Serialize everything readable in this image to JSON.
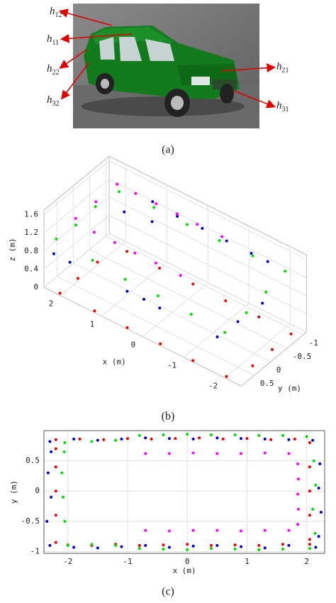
{
  "figure_a": {
    "labels": [
      {
        "base": "h",
        "sub": "12"
      },
      {
        "base": "h",
        "sub": "11"
      },
      {
        "base": "h",
        "sub": "22"
      },
      {
        "base": "h",
        "sub": "32"
      },
      {
        "base": "h",
        "sub": "21"
      },
      {
        "base": "h",
        "sub": "31"
      }
    ]
  },
  "captions": [
    "(a)",
    "(b)",
    "(c)"
  ],
  "chart_data": [
    {
      "type": "scatter3d",
      "xlabel": "x (m)",
      "ylabel": "y (m)",
      "zlabel": "z (m)",
      "xlim": [
        -2.4,
        2.4
      ],
      "ylim": [
        -1.1,
        0.9
      ],
      "zlim": [
        0,
        1.7
      ],
      "xticks": [
        2,
        1,
        0,
        -1,
        -2
      ],
      "yticks": [
        -1,
        -0.5,
        0,
        0.5
      ],
      "zticks": [
        0,
        0.4,
        0.8,
        1.2,
        1.6
      ],
      "grid": true,
      "series": [
        {
          "color": "#ee0000",
          "x": [
            2.05,
            1.2,
            0.4,
            -0.4,
            -1.2,
            -2.0,
            -2.2,
            -2.2,
            -2.2,
            -1.4,
            -0.6,
            0.2,
            1.0,
            1.8,
            2.05,
            2.05
          ],
          "y": [
            0.85,
            0.86,
            0.87,
            0.86,
            0.87,
            0.85,
            0.3,
            -0.3,
            -0.88,
            -0.9,
            -0.89,
            -0.9,
            -0.88,
            -0.89,
            -0.3,
            0.3
          ],
          "z": [
            0,
            0,
            0,
            0,
            0,
            0,
            0,
            0,
            0,
            0,
            0,
            0,
            0,
            0,
            0,
            0
          ]
        },
        {
          "color": "#00dd00",
          "x": [
            2.1,
            1.2,
            0.4,
            -0.4,
            -1.2,
            -2.0,
            -2.05,
            -2.05,
            -2.0,
            -1.2,
            -0.4,
            0.4,
            1.2,
            2.0,
            2.1,
            2.1
          ],
          "y": [
            0.9,
            0.92,
            0.93,
            0.93,
            0.92,
            0.9,
            0.3,
            -0.3,
            -0.95,
            -0.96,
            -0.95,
            -0.97,
            -0.96,
            -0.9,
            -0.3,
            0.3
          ],
          "z": [
            1.2,
            1.15,
            1.1,
            1.1,
            1.05,
            1.0,
            1.1,
            1.2,
            1.25,
            1.22,
            1.2,
            1.18,
            1.2,
            1.22,
            1.2,
            1.15
          ]
        },
        {
          "color": "#0000cc",
          "x": [
            2.2,
            1.8,
            1.4,
            0.8,
            0.4,
            0.0,
            -0.4,
            -1.8,
            -2.0,
            -2.2,
            1.2,
            0.6,
            0.0,
            -0.6,
            -1.2,
            -1.6
          ],
          "y": [
            0.85,
            0.86,
            -0.3,
            -0.4,
            0.87,
            0.86,
            0.88,
            0.88,
            0.5,
            0.0,
            -0.92,
            -0.92,
            -0.93,
            -0.92,
            -0.92,
            -0.92
          ],
          "z": [
            0.8,
            0.8,
            1.4,
            1.4,
            0.8,
            0.8,
            0.8,
            0.8,
            1.0,
            1.2,
            1.35,
            1.3,
            1.3,
            1.3,
            1.3,
            1.3
          ]
        },
        {
          "color": "#ff00ff",
          "x": [
            1.85,
            1.85,
            1.85,
            1.4,
            0.9,
            0.4,
            -0.1,
            -0.7,
            1.4,
            0.9,
            0.4,
            -0.1,
            -0.7
          ],
          "y": [
            0.62,
            0.0,
            -0.65,
            -0.65,
            -0.65,
            -0.66,
            -0.65,
            -0.65,
            0.62,
            0.62,
            0.63,
            0.62,
            0.62
          ],
          "z": [
            1.6,
            1.6,
            1.6,
            1.6,
            1.6,
            1.6,
            1.6,
            1.6,
            1.5,
            1.5,
            1.5,
            1.5,
            1.5
          ]
        }
      ]
    },
    {
      "type": "scatter",
      "xlabel": "x (m)",
      "ylabel": "y (m)",
      "xlim": [
        -2.4,
        2.3
      ],
      "ylim": [
        -1.03,
        1.0
      ],
      "xticks": [
        -2,
        -1,
        0,
        1,
        2
      ],
      "yticks": [
        -1,
        -0.5,
        0,
        0.5
      ],
      "grid": true,
      "series": [
        {
          "color": "#ee0000",
          "x": [
            -2.2,
            -1.8,
            -1.4,
            -1.0,
            -0.6,
            -0.2,
            0.2,
            0.6,
            1.0,
            1.4,
            1.8,
            2.05,
            2.05,
            2.05,
            2.05,
            2.05,
            2.05,
            1.6,
            1.2,
            0.8,
            0.4,
            0,
            -0.4,
            -0.8,
            -1.2,
            -1.6,
            -2.0,
            -2.2,
            -2.2,
            -2.2,
            -2.2,
            -2.2
          ],
          "y": [
            0.85,
            0.86,
            0.85,
            0.87,
            0.86,
            0.87,
            0.88,
            0.86,
            0.87,
            0.85,
            0.86,
            0.8,
            0.4,
            0,
            -0.4,
            -0.8,
            -0.88,
            -0.88,
            -0.9,
            -0.89,
            -0.9,
            -0.88,
            -0.89,
            -0.9,
            -0.88,
            -0.9,
            -0.89,
            -0.85,
            -0.4,
            0,
            0.4,
            0.7
          ]
        },
        {
          "color": "#0000cc",
          "x": [
            -2.3,
            -1.9,
            -1.5,
            -1.1,
            -0.7,
            -0.3,
            0.1,
            0.5,
            0.9,
            1.3,
            1.7,
            2.1,
            2.22,
            2.2,
            2.24,
            2.2,
            2.15,
            1.7,
            1.3,
            0.9,
            0.5,
            0.1,
            -0.3,
            -0.7,
            -1.1,
            -1.5,
            -1.9,
            -2.3,
            -2.35,
            -2.28,
            -2.33,
            -2.28
          ],
          "y": [
            0.82,
            0.86,
            0.84,
            0.86,
            0.88,
            0.87,
            0.86,
            0.88,
            0.87,
            0.86,
            0.85,
            0.84,
            0.45,
            0.05,
            -0.35,
            -0.75,
            -0.93,
            -0.9,
            -0.94,
            -0.92,
            -0.9,
            -0.91,
            -0.93,
            -0.9,
            -0.92,
            -0.94,
            -0.93,
            -0.9,
            -0.5,
            -0.1,
            0.3,
            0.65
          ]
        },
        {
          "color": "#00dd00",
          "x": [
            -2.05,
            -1.6,
            -1.2,
            -0.8,
            -0.4,
            0,
            0.4,
            0.8,
            1.2,
            1.6,
            2.0,
            2.12,
            2.15,
            2.1,
            2.14,
            2.05,
            1.6,
            1.2,
            0.8,
            0.4,
            0,
            -0.4,
            -0.8,
            -1.2,
            -1.6,
            -2.0,
            -2.05,
            -2.08,
            -2.1,
            -2.06
          ],
          "y": [
            0.8,
            0.82,
            0.84,
            0.92,
            0.93,
            0.94,
            0.93,
            0.93,
            0.92,
            0.92,
            0.9,
            0.5,
            0.1,
            -0.3,
            -0.7,
            -0.95,
            -0.96,
            -0.97,
            -0.96,
            -0.95,
            -0.97,
            -0.96,
            -0.95,
            -0.9,
            -0.88,
            -0.9,
            -0.5,
            -0.1,
            0.3,
            0.65
          ]
        },
        {
          "color": "#ff00ff",
          "x": [
            -0.7,
            -0.3,
            0.1,
            0.5,
            0.9,
            1.3,
            1.7,
            1.85,
            1.86,
            1.85,
            1.86,
            1.85,
            1.7,
            1.3,
            0.9,
            0.5,
            0.1,
            -0.3,
            -0.7
          ],
          "y": [
            0.62,
            0.62,
            0.63,
            0.62,
            0.62,
            0.63,
            0.62,
            0.45,
            0.2,
            -0.05,
            -0.3,
            -0.55,
            -0.65,
            -0.65,
            -0.66,
            -0.65,
            -0.65,
            -0.66,
            -0.65
          ]
        }
      ]
    }
  ]
}
